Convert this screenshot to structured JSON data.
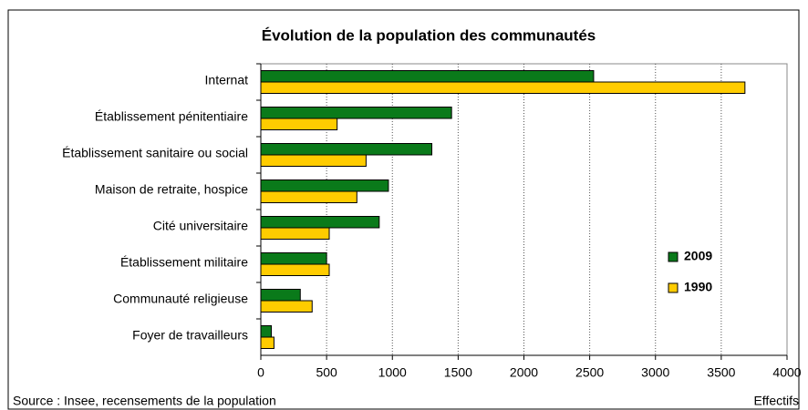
{
  "chart_data": {
    "type": "hbar",
    "title": "Évolution de la population des communautés",
    "categories": [
      "Internat",
      "Établissement pénitentiaire",
      "Établissement sanitaire ou social",
      "Maison de retraite, hospice",
      "Cité universitaire",
      "Établissement militaire",
      "Communauté religieuse",
      "Foyer de travailleurs"
    ],
    "series": [
      {
        "name": "2009",
        "color": "#0a7a1a",
        "values": [
          2530,
          1450,
          1300,
          970,
          900,
          500,
          300,
          80
        ]
      },
      {
        "name": "1990",
        "color": "#ffcc00",
        "values": [
          3680,
          580,
          800,
          730,
          520,
          520,
          390,
          100
        ]
      }
    ],
    "xlim": [
      0,
      4000
    ],
    "xticks": [
      0,
      500,
      1000,
      1500,
      2000,
      2500,
      3000,
      3500,
      4000
    ],
    "grid": true,
    "legend": "right",
    "source": "Source : Insee, recensements de la population",
    "x_label": "Effectifs"
  }
}
